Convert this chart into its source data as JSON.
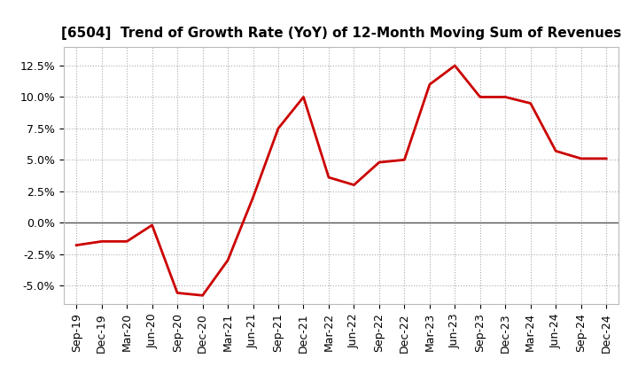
{
  "title": "[6504]  Trend of Growth Rate (YoY) of 12-Month Moving Sum of Revenues",
  "x_labels": [
    "Sep-19",
    "Dec-19",
    "Mar-20",
    "Jun-20",
    "Sep-20",
    "Dec-20",
    "Mar-21",
    "Jun-21",
    "Sep-21",
    "Dec-21",
    "Mar-22",
    "Jun-22",
    "Sep-22",
    "Dec-22",
    "Mar-23",
    "Jun-23",
    "Sep-23",
    "Dec-23",
    "Mar-24",
    "Jun-24",
    "Sep-24",
    "Dec-24"
  ],
  "y_values": [
    -0.018,
    -0.015,
    -0.015,
    -0.002,
    -0.056,
    -0.058,
    -0.03,
    0.02,
    0.075,
    0.1,
    0.036,
    0.03,
    0.048,
    0.05,
    0.11,
    0.125,
    0.1,
    0.1,
    0.095,
    0.057,
    0.051,
    0.051
  ],
  "line_color": "#cc0000",
  "line_width": 2.0,
  "background_color": "#ffffff",
  "plot_bg_color": "#ffffff",
  "grid_color": "#aaaaaa",
  "ylim": [
    -0.065,
    0.14
  ],
  "yticks": [
    -0.05,
    -0.025,
    0.0,
    0.025,
    0.05,
    0.075,
    0.1,
    0.125
  ],
  "title_fontsize": 11,
  "tick_fontsize": 9
}
